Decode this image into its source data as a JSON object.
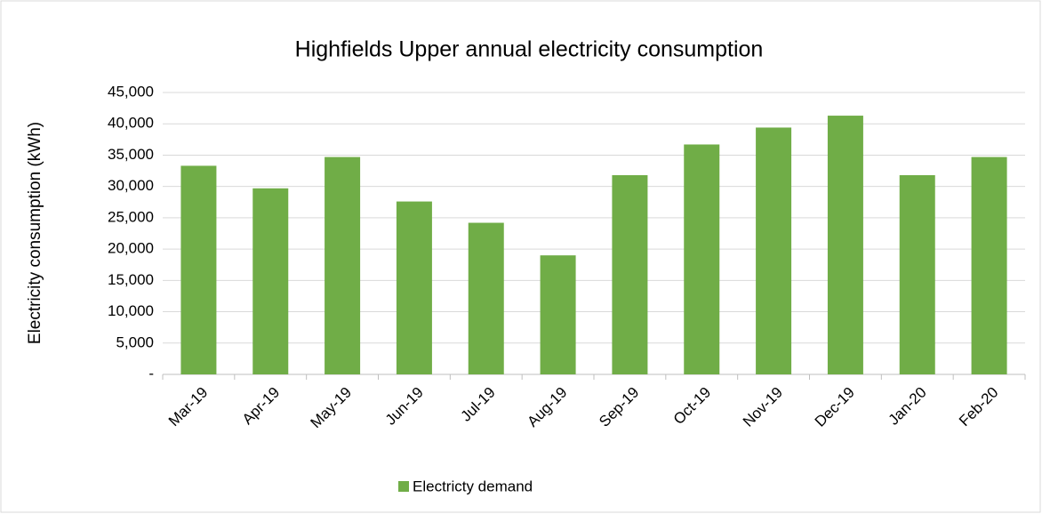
{
  "chart_data": {
    "type": "bar",
    "title": "Highfields Upper annual electricity consumption",
    "y_label": "Electricity consumption (kWh)",
    "categories": [
      "Mar-19",
      "Apr-19",
      "May-19",
      "Jun-19",
      "Jul-19",
      "Aug-19",
      "Sep-19",
      "Oct-19",
      "Nov-19",
      "Dec-19",
      "Jan-20",
      "Feb-20"
    ],
    "series": [
      {
        "name": "Electricty demand",
        "color": "#70ad47",
        "values": [
          33300,
          29700,
          34700,
          27600,
          24200,
          19000,
          31800,
          36700,
          39400,
          41300,
          31800,
          34700
        ]
      }
    ],
    "ylim": [
      0,
      45000
    ],
    "yticks": [
      {
        "value": 0,
        "label": "-"
      },
      {
        "value": 5000,
        "label": "5,000"
      },
      {
        "value": 10000,
        "label": "10,000"
      },
      {
        "value": 15000,
        "label": "15,000"
      },
      {
        "value": 20000,
        "label": "20,000"
      },
      {
        "value": 25000,
        "label": "25,000"
      },
      {
        "value": 30000,
        "label": "30,000"
      },
      {
        "value": 35000,
        "label": "35,000"
      },
      {
        "value": 40000,
        "label": "40,000"
      },
      {
        "value": 45000,
        "label": "45,000"
      }
    ],
    "grid": true,
    "legend": "bottom"
  }
}
